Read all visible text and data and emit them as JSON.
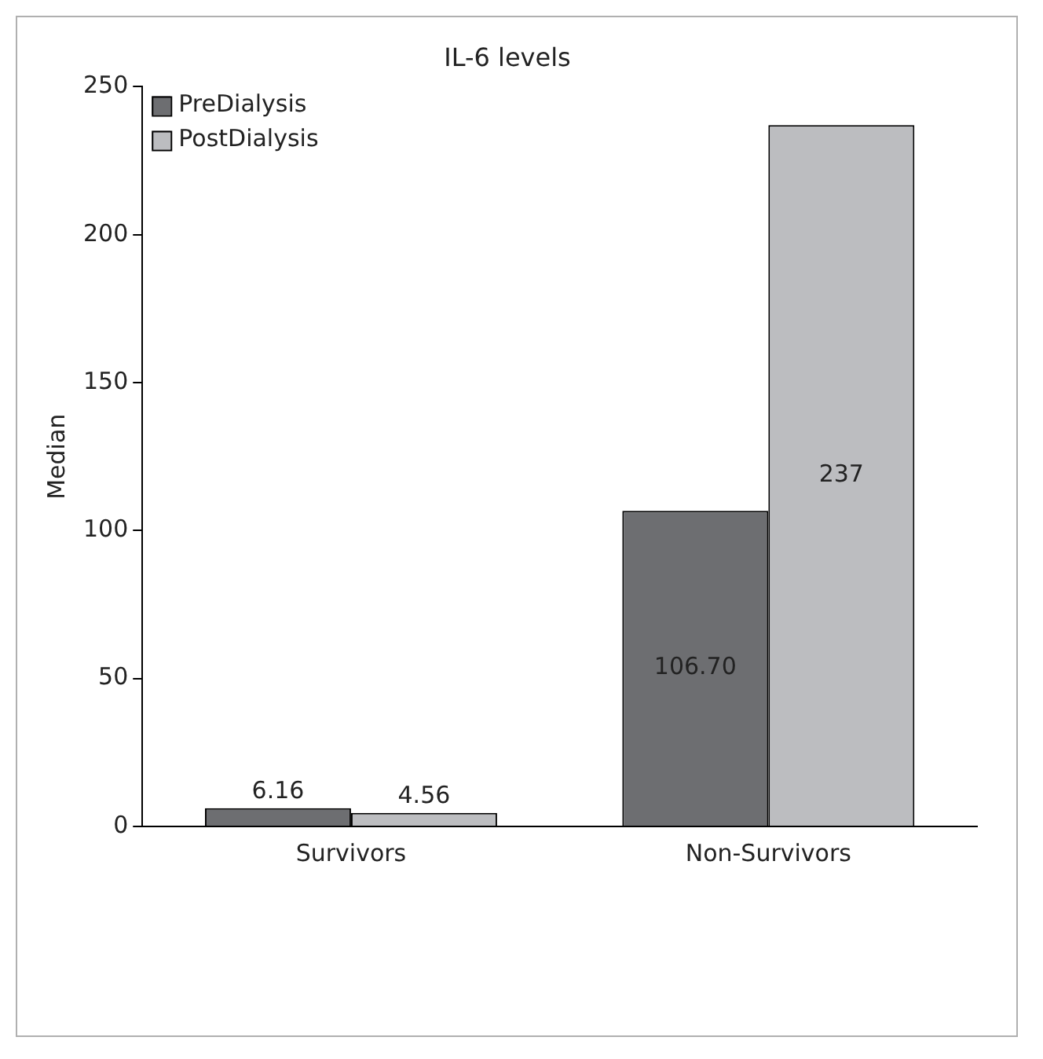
{
  "chart_data": {
    "type": "bar",
    "title": "IL-6 levels",
    "ylabel": "Median",
    "categories": [
      "Survivors",
      "Non-Survivors"
    ],
    "series": [
      {
        "name": "PreDialysis",
        "color": "#6d6e71",
        "values": [
          6.16,
          106.7
        ],
        "value_labels": [
          "6.16",
          "106.70"
        ]
      },
      {
        "name": "PostDialysis",
        "color": "#bcbdc0",
        "values": [
          4.56,
          237
        ],
        "value_labels": [
          "4.56",
          "237"
        ]
      }
    ],
    "ylim": [
      0,
      250
    ],
    "yticks": [
      0,
      50,
      100,
      150,
      200,
      250
    ],
    "grid": false,
    "legend": "top left"
  }
}
